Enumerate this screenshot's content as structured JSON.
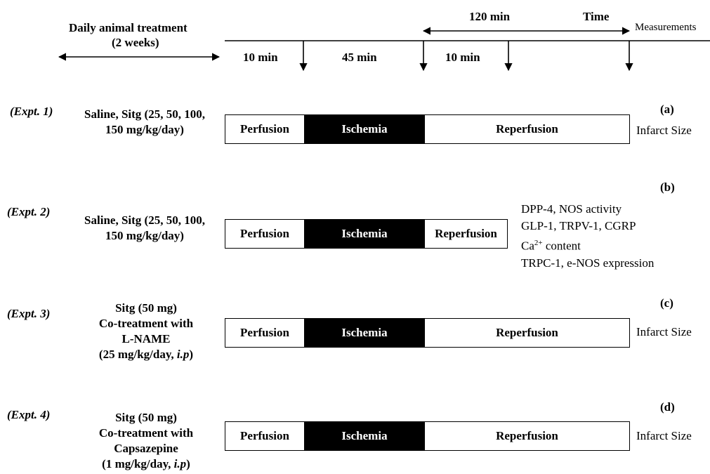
{
  "header": {
    "treatment_title": "Daily animal treatment",
    "treatment_duration": "(2 weeks)",
    "time_span": "120 min",
    "time_label": "Time",
    "measurements_label": "Measurements",
    "intervals": [
      "10 min",
      "45 min",
      "10 min"
    ]
  },
  "phases": {
    "perfusion": "Perfusion",
    "ischemia": "Ischemia",
    "reperfusion": "Reperfusion"
  },
  "experiments": [
    {
      "label": "(Expt. 1)",
      "panel": "(a)",
      "treatment_lines": [
        "Saline, Sitg (25, 50, 100,",
        "150 mg/kg/day)"
      ],
      "outcome_lines": [
        "Infarct Size"
      ]
    },
    {
      "label": "(Expt. 2)",
      "panel": "(b)",
      "treatment_lines": [
        "Saline, Sitg (25, 50, 100,",
        "150 mg/kg/day)"
      ],
      "outcome_lines": [
        "DPP-4, NOS activity",
        "GLP-1, TRPV-1, CGRP",
        "content",
        "TRPC-1, e-NOS expression"
      ],
      "calcium_base": "Ca",
      "calcium_sup": "2+"
    },
    {
      "label": "(Expt. 3)",
      "panel": "(c)",
      "treatment_lines": [
        "Sitg (50 mg)",
        "Co-treatment with",
        "L-NAME",
        "(25 mg/kg/day, ",
        "i.p",
        ")"
      ],
      "outcome_lines": [
        "Infarct Size"
      ]
    },
    {
      "label": "(Expt. 4)",
      "panel": "(d)",
      "treatment_lines": [
        "Sitg (50 mg)",
        "Co-treatment with",
        "Capsazepine",
        "(1 mg/kg/day, ",
        "i.p",
        ")"
      ],
      "outcome_lines": [
        "Infarct Size"
      ]
    }
  ]
}
